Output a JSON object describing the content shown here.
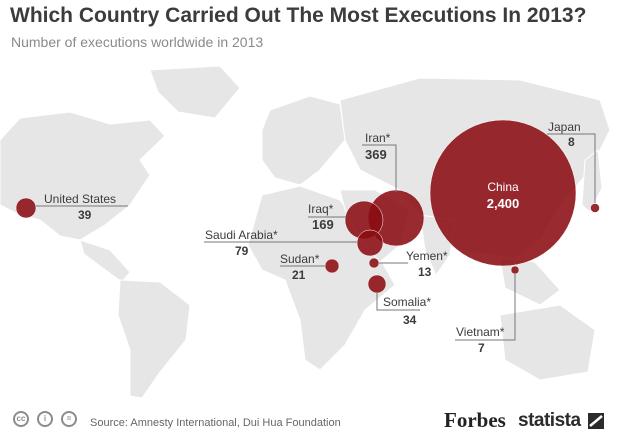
{
  "header": {
    "title": "Which Country Carried Out The Most Executions In 2013?",
    "subtitle": "Number of executions worldwide in 2013"
  },
  "chart_data": {
    "type": "bubble-map",
    "title": "Which Country Carried Out The Most Executions In 2013?",
    "subtitle": "Number of executions worldwide in 2013",
    "unit": "executions",
    "points": [
      {
        "label": "China",
        "value": 2400,
        "value_label": "2,400"
      },
      {
        "label": "Iran*",
        "value": 369,
        "value_label": "369"
      },
      {
        "label": "Iraq*",
        "value": 169,
        "value_label": "169"
      },
      {
        "label": "Saudi Arabia*",
        "value": 79,
        "value_label": "79"
      },
      {
        "label": "United States",
        "value": 39,
        "value_label": "39"
      },
      {
        "label": "Somalia*",
        "value": 34,
        "value_label": "34"
      },
      {
        "label": "Sudan*",
        "value": 21,
        "value_label": "21"
      },
      {
        "label": "Yemen*",
        "value": 13,
        "value_label": "13"
      },
      {
        "label": "Japan",
        "value": 8,
        "value_label": "8"
      },
      {
        "label": "Vietnam*",
        "value": 7,
        "value_label": "7"
      }
    ],
    "bubble_color": "#8b0d13"
  },
  "footer": {
    "source": "Source: Amnesty International, Dui Hua Foundation",
    "license_icons": [
      "cc-icon",
      "by-icon",
      "nd-icon"
    ],
    "license_labels": [
      "cc",
      "i",
      "="
    ],
    "brand_forbes": "Forbes",
    "brand_statista": "statista"
  }
}
